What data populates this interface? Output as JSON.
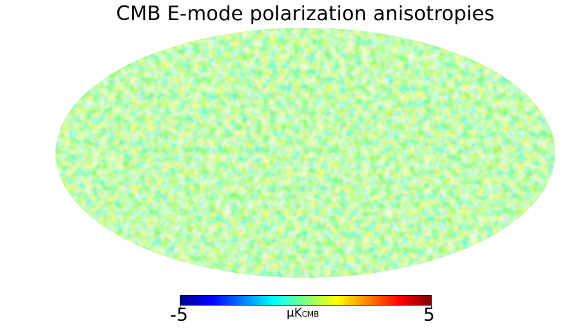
{
  "title": "CMB E-mode polarization anisotropies",
  "map": {
    "projection": "mollweide",
    "quantity": "CMB E-mode polarization",
    "colormap": "jet",
    "colors": [
      "#00008f",
      "#0000ff",
      "#00ffff",
      "#ffff00",
      "#ff0000",
      "#800000"
    ]
  },
  "colorbar": {
    "min_label": "-5",
    "max_label": "5",
    "min": -5,
    "max": 5,
    "unit_prefix": "μK",
    "unit_sub": "CMB"
  }
}
